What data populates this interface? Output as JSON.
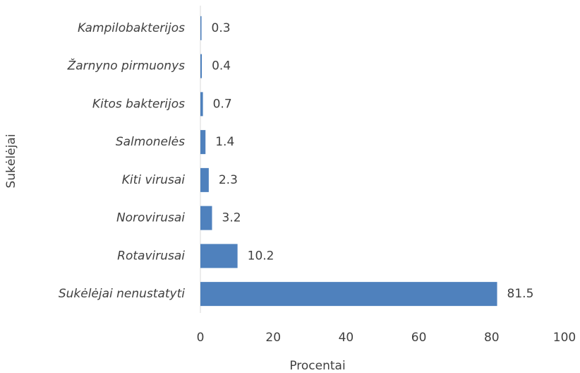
{
  "chart_data": {
    "type": "bar",
    "orientation": "horizontal",
    "categories": [
      "Kampilobakterijos",
      "Žarnyno pirmuonys",
      "Kitos bakterijos",
      "Salmonelės",
      "Kiti virusai",
      "Norovirusai",
      "Rotavirusai",
      "Sukėlėjai nenustatyti"
    ],
    "values": [
      0.3,
      0.4,
      0.7,
      1.4,
      2.3,
      3.2,
      10.2,
      81.5
    ],
    "color": "#4f81bd",
    "xlim": [
      0,
      100
    ],
    "xticks": [
      0,
      20,
      40,
      60,
      80,
      100
    ],
    "x_label": "Procentai",
    "y_label": "Sukėlėjai",
    "grid": false
  }
}
